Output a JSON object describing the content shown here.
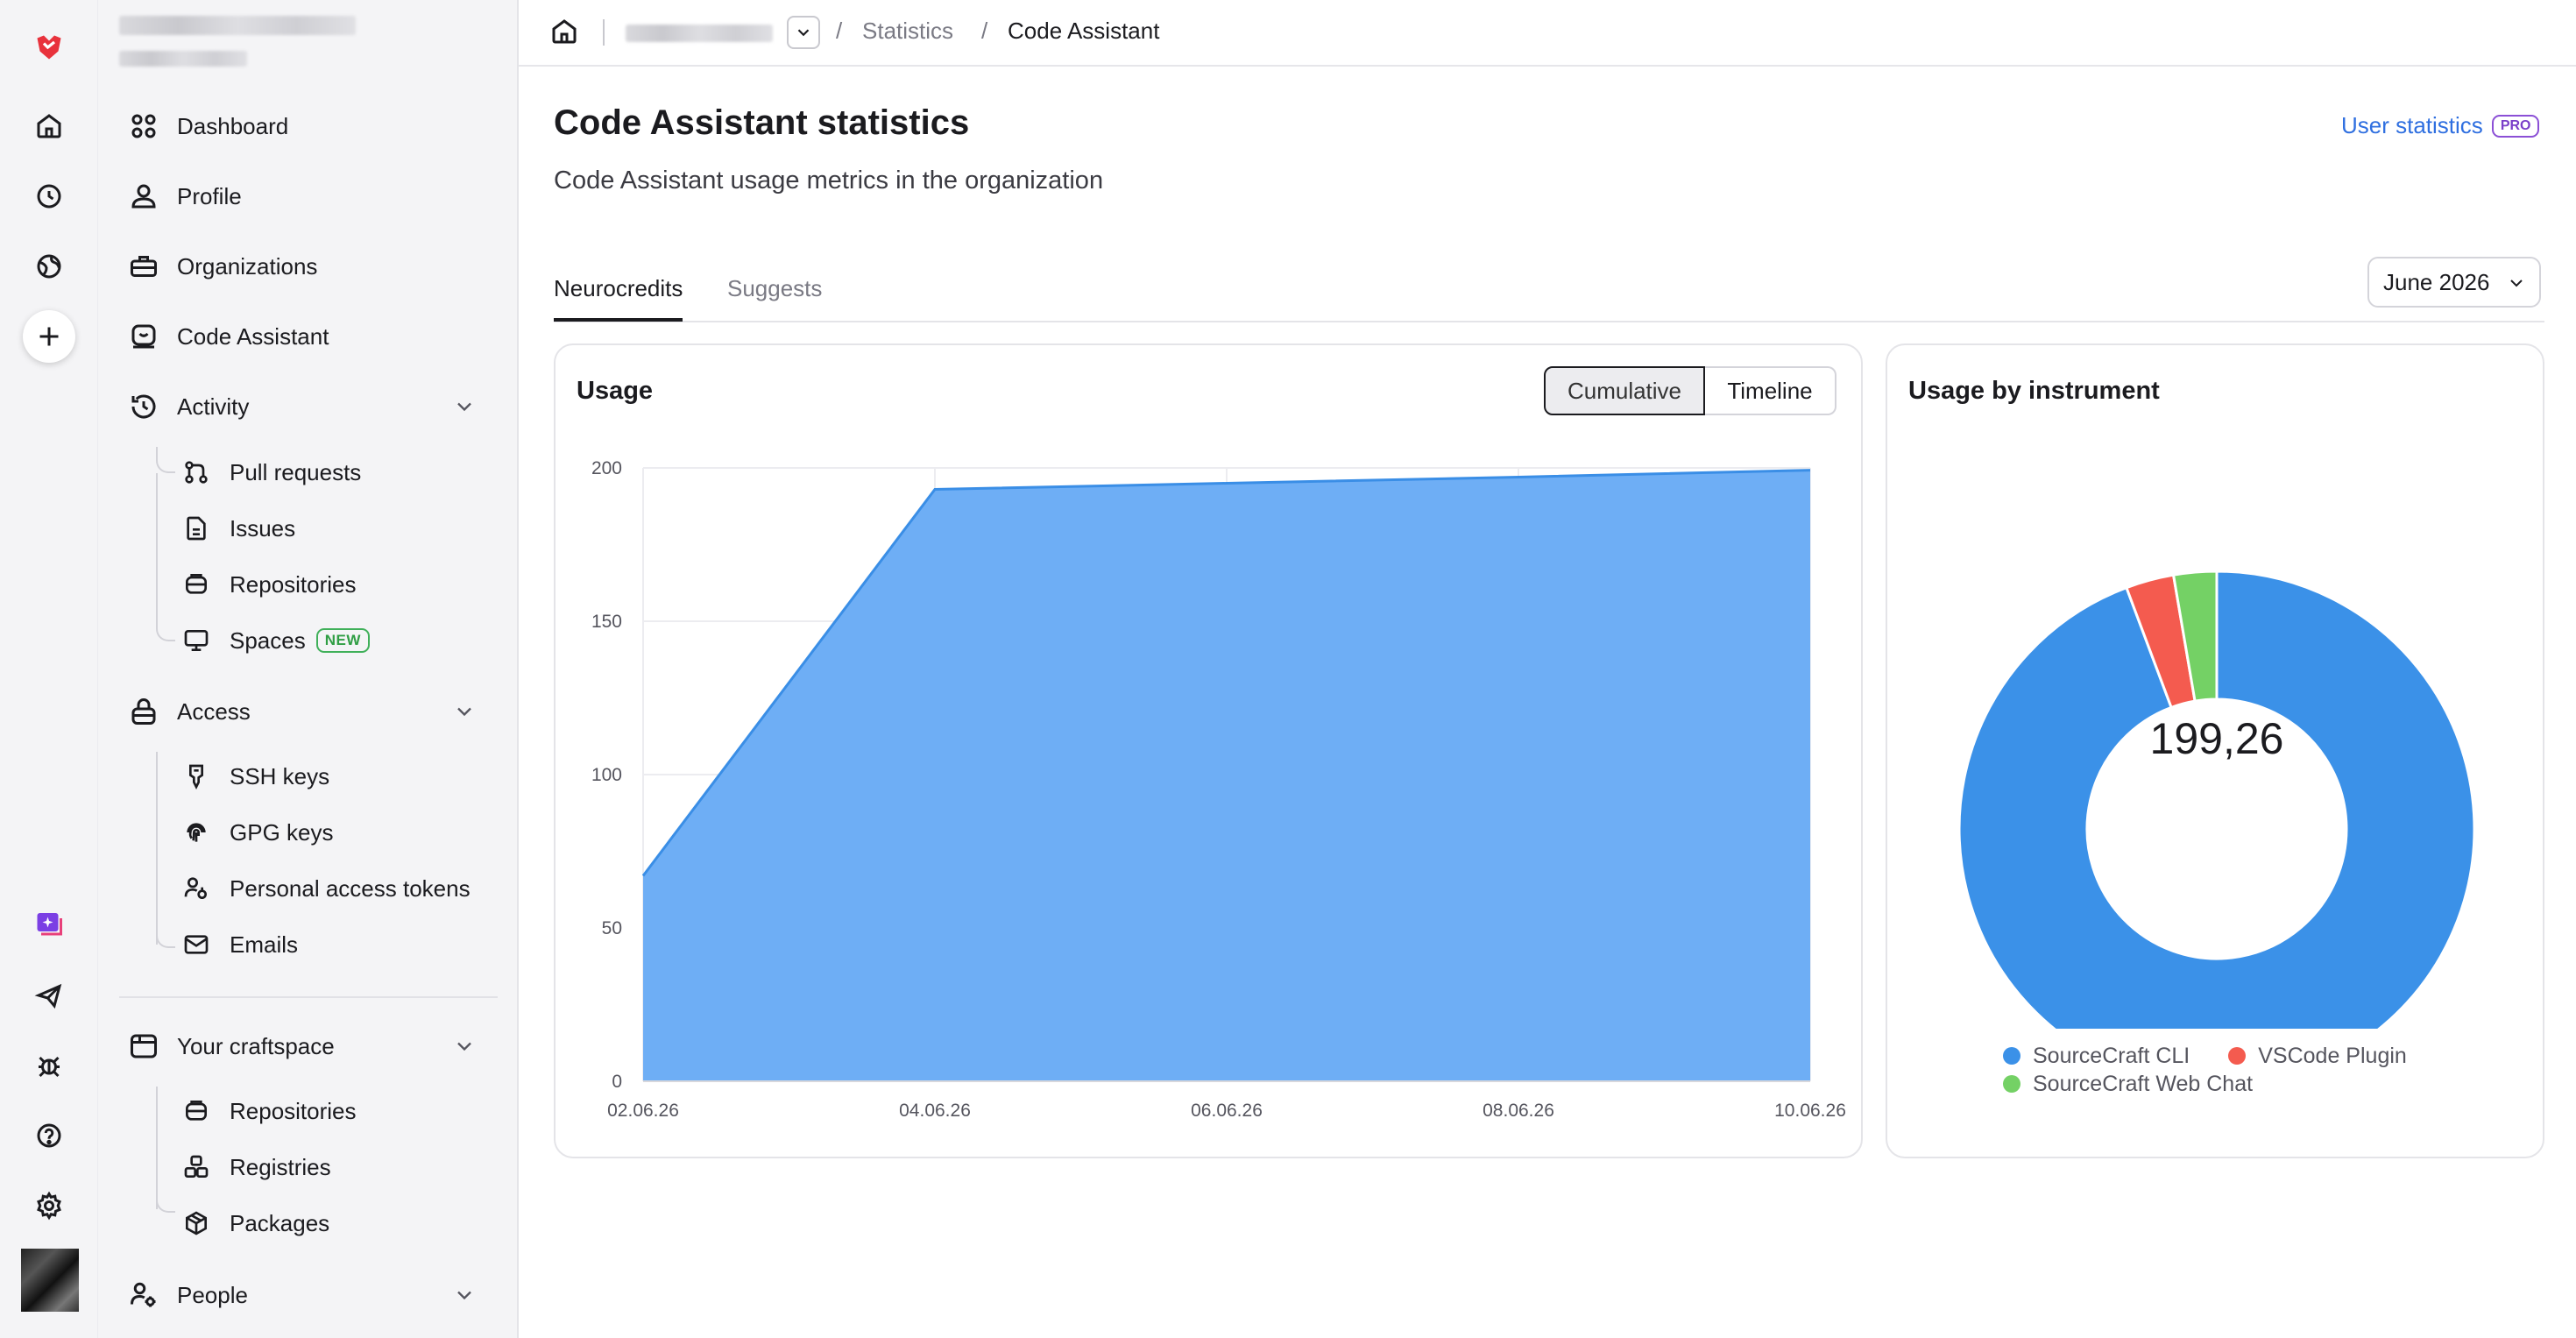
{
  "breadcrumb": {
    "items": [
      "Statistics",
      "Code Assistant"
    ],
    "separator": "/"
  },
  "sidebar": {
    "nav": [
      {
        "label": "Dashboard",
        "icon": "dashboard-icon"
      },
      {
        "label": "Profile",
        "icon": "person-icon"
      },
      {
        "label": "Organizations",
        "icon": "briefcase-icon"
      },
      {
        "label": "Code Assistant",
        "icon": "code-assistant-icon"
      }
    ],
    "activity": {
      "label": "Activity",
      "items": [
        {
          "label": "Pull requests",
          "icon": "pull-request-icon"
        },
        {
          "label": "Issues",
          "icon": "document-icon"
        },
        {
          "label": "Repositories",
          "icon": "repository-icon"
        },
        {
          "label": "Spaces",
          "icon": "monitor-icon",
          "badge": "NEW"
        }
      ]
    },
    "access": {
      "label": "Access",
      "items": [
        {
          "label": "SSH keys",
          "icon": "key-icon"
        },
        {
          "label": "GPG keys",
          "icon": "fingerprint-icon"
        },
        {
          "label": "Personal access tokens",
          "icon": "person-key-icon"
        },
        {
          "label": "Emails",
          "icon": "envelope-icon"
        }
      ]
    },
    "craftspace": {
      "label": "Your craftspace",
      "items": [
        {
          "label": "Repositories",
          "icon": "repository-icon"
        },
        {
          "label": "Registries",
          "icon": "registry-icon"
        },
        {
          "label": "Packages",
          "icon": "package-icon"
        }
      ]
    },
    "people": {
      "label": "People",
      "icon": "people-settings-icon"
    }
  },
  "page": {
    "title": "Code Assistant statistics",
    "subtitle": "Code Assistant usage metrics in the organization",
    "user_stats_link": "User statistics",
    "pro_badge": "PRO"
  },
  "tabs": [
    {
      "label": "Neurocredits",
      "active": true
    },
    {
      "label": "Suggests",
      "active": false
    }
  ],
  "month_select": {
    "value": "June 2026"
  },
  "usage_card": {
    "title": "Usage",
    "toggle": [
      {
        "label": "Cumulative",
        "active": true
      },
      {
        "label": "Timeline",
        "active": false
      }
    ]
  },
  "instrument_card": {
    "title": "Usage by instrument",
    "center_value": "199,26"
  },
  "colors": {
    "area_fill": "#6eaef5",
    "area_line": "#3a8ee6",
    "sourcecraft_cli": "#3b91e8",
    "vscode_plugin": "#f45b4f",
    "web_chat": "#74d165",
    "link": "#2f6fe0",
    "brand": "#e8323c"
  },
  "chart_data": [
    {
      "type": "area",
      "title": "Usage",
      "x": [
        "02.06.26",
        "04.06.26",
        "06.06.26",
        "08.06.26",
        "10.06.26"
      ],
      "x_tick_labels": [
        "02.06.26",
        "04.06.26",
        "06.06.26",
        "08.06.26",
        "10.06.26"
      ],
      "series": [
        {
          "values": [
            67,
            193,
            195,
            197,
            199.26
          ]
        }
      ],
      "y_ticks": [
        0,
        50,
        100,
        150,
        200
      ],
      "ylim": [
        0,
        200
      ],
      "grid": true
    },
    {
      "type": "pie",
      "title": "Usage by instrument",
      "donut": true,
      "center_label": "199,26",
      "slices": [
        {
          "name": "SourceCraft CLI",
          "value": 187.9
        },
        {
          "name": "VSCode Plugin",
          "value": 6.0
        },
        {
          "name": "SourceCraft Web Chat",
          "value": 5.36
        }
      ],
      "legend": "bottom"
    }
  ]
}
